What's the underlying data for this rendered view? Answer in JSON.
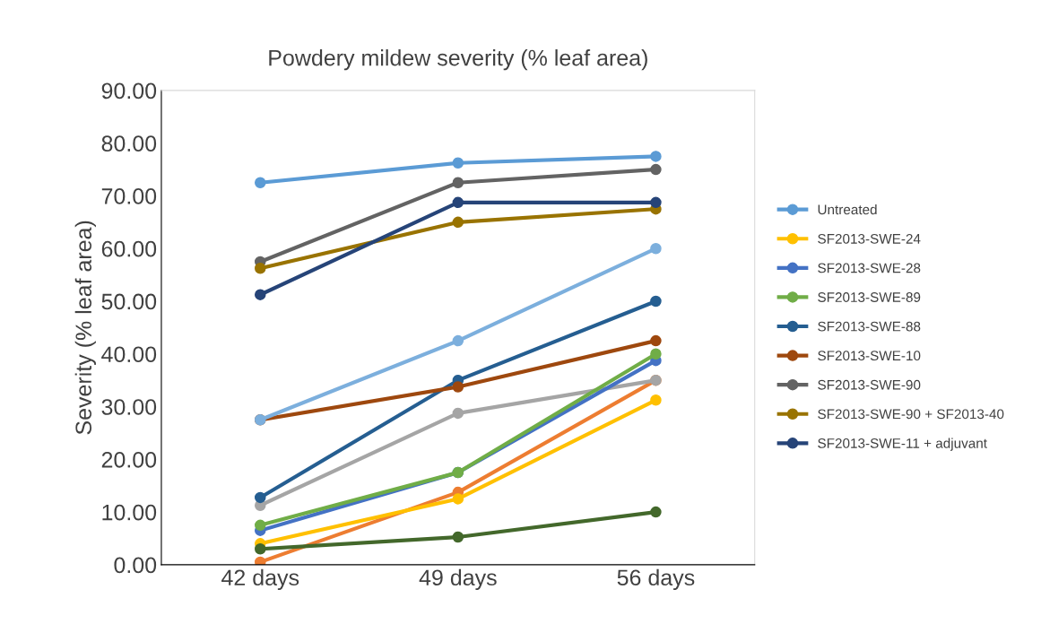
{
  "chart_data": {
    "type": "line",
    "title": "Powdery mildew severity (% leaf area)",
    "ylabel": "Severity (% leaf area)",
    "categories": [
      "42 days",
      "49 days",
      "56 days"
    ],
    "ylim": [
      0,
      90
    ],
    "yticks": [
      {
        "value": 0,
        "label": "0.00"
      },
      {
        "value": 10,
        "label": "10.00"
      },
      {
        "value": 20,
        "label": "20.00"
      },
      {
        "value": 30,
        "label": "30.00"
      },
      {
        "value": 40,
        "label": "40.00"
      },
      {
        "value": 50,
        "label": "50.00"
      },
      {
        "value": 60,
        "label": "60.00"
      },
      {
        "value": 70,
        "label": "70.00"
      },
      {
        "value": 80,
        "label": "80.00"
      },
      {
        "value": 90,
        "label": "90.00"
      }
    ],
    "grid": false,
    "legend": "right",
    "marker": "circle",
    "line_style": "solid",
    "series": [
      {
        "name": "Untreated",
        "color": "#5b9bd5",
        "values": [
          72.5,
          76.25,
          77.5
        ]
      },
      {
        "color": "#ed7d31",
        "values": [
          0.5,
          13.75,
          35
        ]
      },
      {
        "color": "#a5a5a5",
        "values": [
          11.25,
          28.75,
          35
        ]
      },
      {
        "name": "SF2013-SWE-24",
        "color": "#ffc000",
        "values": [
          4,
          12.5,
          31.25
        ]
      },
      {
        "name": "SF2013-SWE-28",
        "color": "#4472c4",
        "values": [
          6.5,
          17.5,
          38.75
        ]
      },
      {
        "name": "SF2013-SWE-89",
        "color": "#70ad47",
        "values": [
          7.5,
          17.5,
          40
        ]
      },
      {
        "name": "SF2013-SWE-88",
        "color": "#255e91",
        "values": [
          12.75,
          35,
          50
        ]
      },
      {
        "name": "SF2013-SWE-10",
        "color": "#9e480e",
        "values": [
          27.5,
          33.75,
          42.5
        ]
      },
      {
        "name": "SF2013-SWE-90",
        "color": "#636363",
        "values": [
          57.5,
          72.5,
          75
        ]
      },
      {
        "name": "SF2013-SWE-90 + SF2013-40",
        "color": "#997300",
        "values": [
          56.25,
          65,
          67.5
        ]
      },
      {
        "name": "SF2013-SWE-11 + adjuvant",
        "color": "#264478",
        "values": [
          51.25,
          68.75,
          68.75
        ]
      },
      {
        "color": "#43682b",
        "values": [
          3,
          5.25,
          10
        ]
      },
      {
        "color": "#7cafdd",
        "values": [
          27.5,
          42.5,
          60
        ]
      }
    ]
  }
}
